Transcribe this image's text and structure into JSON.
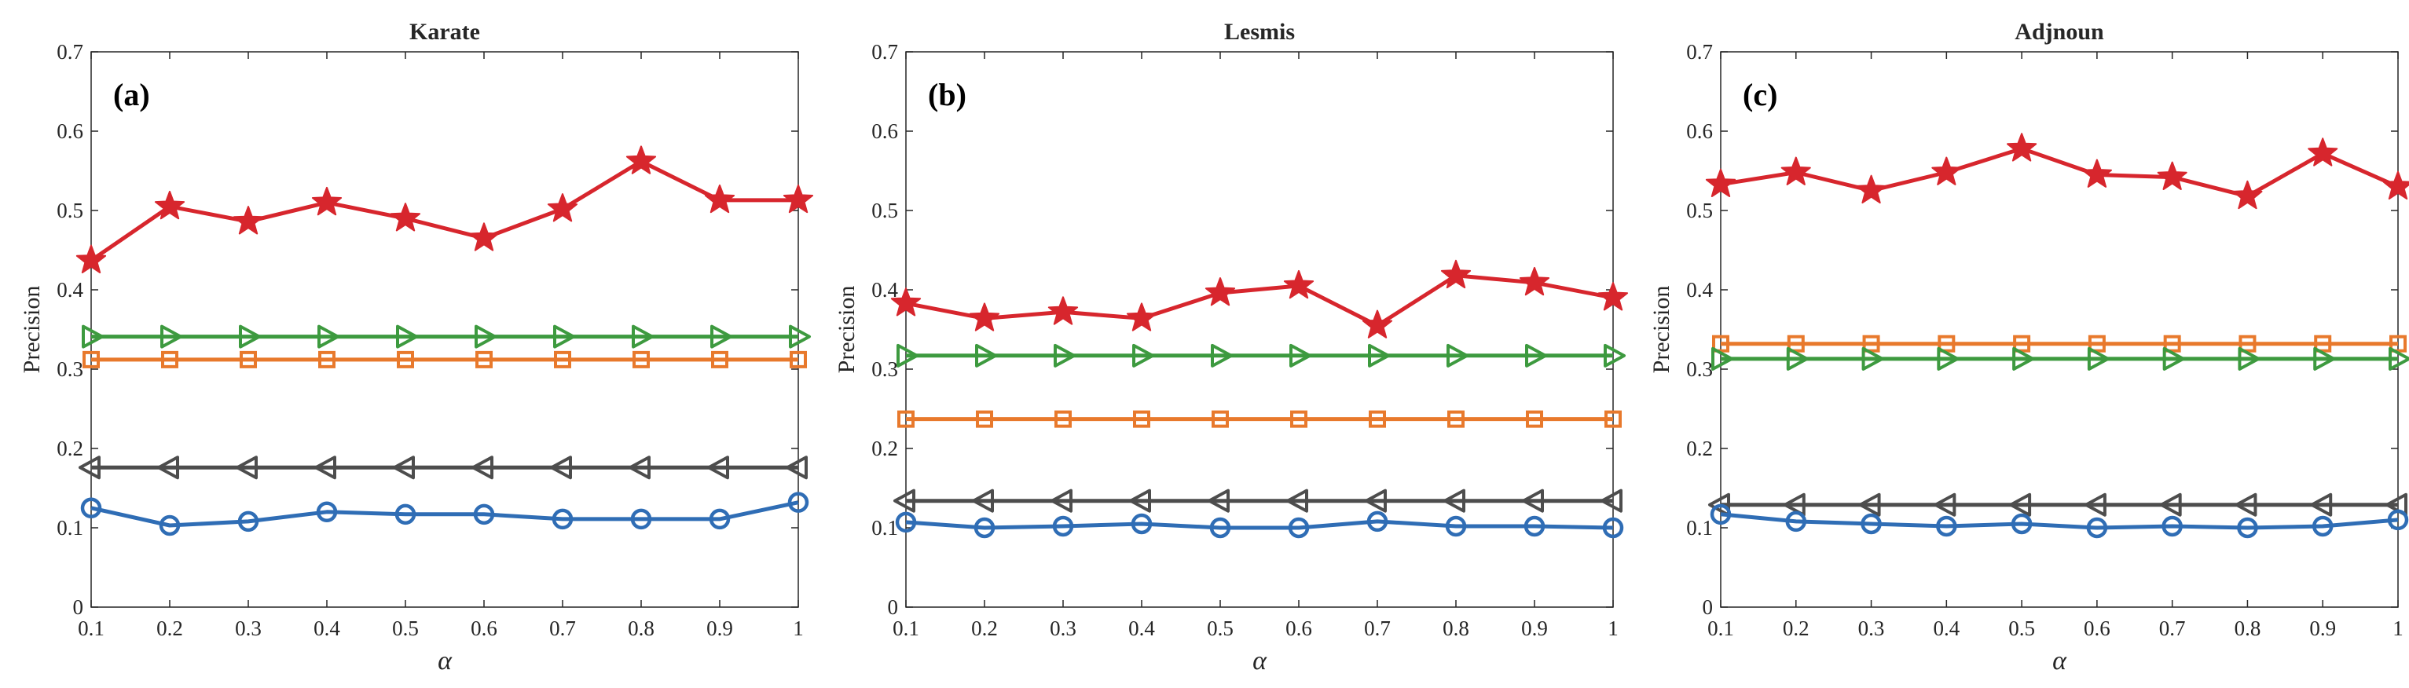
{
  "chart_data": [
    {
      "type": "line",
      "panel_label": "(a)",
      "title": "Karate",
      "xlabel": "α",
      "ylabel": "Precision",
      "x": [
        0.1,
        0.2,
        0.3,
        0.4,
        0.5,
        0.6,
        0.7,
        0.8,
        0.9,
        1
      ],
      "xtick_labels": [
        "0.1",
        "0.2",
        "0.3",
        "0.4",
        "0.5",
        "0.6",
        "0.7",
        "0.8",
        "0.9",
        "1"
      ],
      "ylim": [
        0,
        0.7
      ],
      "yticks": [
        0,
        0.1,
        0.2,
        0.3,
        0.4,
        0.5,
        0.6,
        0.7
      ],
      "ytick_labels": [
        "0",
        "0.1",
        "0.2",
        "0.3",
        "0.4",
        "0.5",
        "0.6",
        "0.7"
      ],
      "grid": false,
      "series": [
        {
          "name": "star",
          "marker": "star",
          "color": "#d7262d",
          "values": [
            0.437,
            0.505,
            0.486,
            0.51,
            0.49,
            0.465,
            0.502,
            0.562,
            0.513,
            0.513
          ]
        },
        {
          "name": "triangle-right",
          "marker": "triangle-right",
          "color": "#3d9a3f",
          "values": [
            0.341,
            0.341,
            0.341,
            0.341,
            0.341,
            0.341,
            0.341,
            0.341,
            0.341,
            0.341
          ]
        },
        {
          "name": "square",
          "marker": "square",
          "color": "#e8792c",
          "values": [
            0.312,
            0.312,
            0.312,
            0.312,
            0.312,
            0.312,
            0.312,
            0.312,
            0.312,
            0.312
          ]
        },
        {
          "name": "triangle-left",
          "marker": "triangle-left",
          "color": "#4d4d4d",
          "values": [
            0.176,
            0.176,
            0.176,
            0.176,
            0.176,
            0.176,
            0.176,
            0.176,
            0.176,
            0.176
          ]
        },
        {
          "name": "circle",
          "marker": "circle",
          "color": "#2f6db5",
          "values": [
            0.125,
            0.103,
            0.108,
            0.12,
            0.117,
            0.117,
            0.111,
            0.111,
            0.111,
            0.132
          ]
        }
      ]
    },
    {
      "type": "line",
      "panel_label": "(b)",
      "title": "Lesmis",
      "xlabel": "α",
      "ylabel": "Precision",
      "x": [
        0.1,
        0.2,
        0.3,
        0.4,
        0.5,
        0.6,
        0.7,
        0.8,
        0.9,
        1
      ],
      "xtick_labels": [
        "0.1",
        "0.2",
        "0.3",
        "0.4",
        "0.5",
        "0.6",
        "0.7",
        "0.8",
        "0.9",
        "1"
      ],
      "ylim": [
        0,
        0.7
      ],
      "yticks": [
        0,
        0.1,
        0.2,
        0.3,
        0.4,
        0.5,
        0.6,
        0.7
      ],
      "ytick_labels": [
        "0",
        "0.1",
        "0.2",
        "0.3",
        "0.4",
        "0.5",
        "0.6",
        "0.7"
      ],
      "grid": false,
      "series": [
        {
          "name": "star",
          "marker": "star",
          "color": "#d7262d",
          "values": [
            0.383,
            0.364,
            0.372,
            0.364,
            0.396,
            0.405,
            0.355,
            0.418,
            0.409,
            0.39
          ]
        },
        {
          "name": "triangle-right",
          "marker": "triangle-right",
          "color": "#3d9a3f",
          "values": [
            0.317,
            0.317,
            0.317,
            0.317,
            0.317,
            0.317,
            0.317,
            0.317,
            0.317,
            0.317
          ]
        },
        {
          "name": "square",
          "marker": "square",
          "color": "#e8792c",
          "values": [
            0.237,
            0.237,
            0.237,
            0.237,
            0.237,
            0.237,
            0.237,
            0.237,
            0.237,
            0.237
          ]
        },
        {
          "name": "triangle-left",
          "marker": "triangle-left",
          "color": "#4d4d4d",
          "values": [
            0.134,
            0.134,
            0.134,
            0.134,
            0.134,
            0.134,
            0.134,
            0.134,
            0.134,
            0.134
          ]
        },
        {
          "name": "circle",
          "marker": "circle",
          "color": "#2f6db5",
          "values": [
            0.107,
            0.1,
            0.102,
            0.105,
            0.1,
            0.1,
            0.108,
            0.102,
            0.102,
            0.1
          ]
        }
      ]
    },
    {
      "type": "line",
      "panel_label": "(c)",
      "title": "Adjnoun",
      "xlabel": "α",
      "ylabel": "Precision",
      "x": [
        0.1,
        0.2,
        0.3,
        0.4,
        0.5,
        0.6,
        0.7,
        0.8,
        0.9,
        1
      ],
      "xtick_labels": [
        "0.1",
        "0.2",
        "0.3",
        "0.4",
        "0.5",
        "0.6",
        "0.7",
        "0.8",
        "0.9",
        "1"
      ],
      "ylim": [
        0,
        0.7
      ],
      "yticks": [
        0,
        0.1,
        0.2,
        0.3,
        0.4,
        0.5,
        0.6,
        0.7
      ],
      "ytick_labels": [
        "0",
        "0.1",
        "0.2",
        "0.3",
        "0.4",
        "0.5",
        "0.6",
        "0.7"
      ],
      "grid": false,
      "series": [
        {
          "name": "star",
          "marker": "star",
          "color": "#d7262d",
          "values": [
            0.533,
            0.548,
            0.525,
            0.548,
            0.578,
            0.545,
            0.542,
            0.518,
            0.572,
            0.53
          ]
        },
        {
          "name": "square",
          "marker": "square",
          "color": "#e8792c",
          "values": [
            0.332,
            0.332,
            0.332,
            0.332,
            0.332,
            0.332,
            0.332,
            0.332,
            0.332,
            0.332
          ]
        },
        {
          "name": "triangle-right",
          "marker": "triangle-right",
          "color": "#3d9a3f",
          "values": [
            0.313,
            0.313,
            0.313,
            0.313,
            0.313,
            0.313,
            0.313,
            0.313,
            0.313,
            0.313
          ]
        },
        {
          "name": "triangle-left",
          "marker": "triangle-left",
          "color": "#4d4d4d",
          "values": [
            0.129,
            0.129,
            0.129,
            0.129,
            0.129,
            0.129,
            0.129,
            0.129,
            0.129,
            0.129
          ]
        },
        {
          "name": "circle",
          "marker": "circle",
          "color": "#2f6db5",
          "values": [
            0.117,
            0.108,
            0.105,
            0.102,
            0.105,
            0.1,
            0.102,
            0.1,
            0.102,
            0.11
          ]
        }
      ]
    }
  ]
}
